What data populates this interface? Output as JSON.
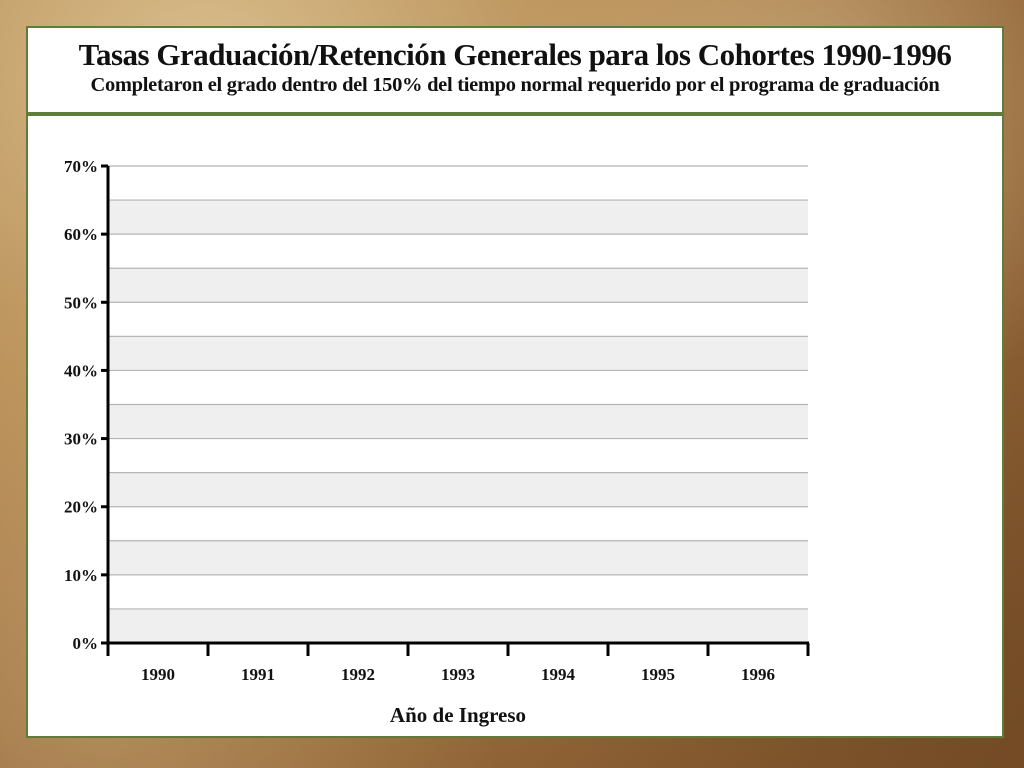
{
  "slide": {
    "title": "Tasas Graduación/Retención Generales para los Cohortes 1990-1996",
    "subtitle": "Completaron el grado dentro del 150% del tiempo normal requerido por el programa de graduación"
  },
  "chart_data": {
    "type": "bar",
    "title": "Tasas Graduación/Retención Generales para los Cohortes 1990-1996",
    "subtitle": "Completaron el grado dentro del 150% del tiempo normal requerido por el programa de graduación",
    "xlabel": "Año de Ingreso",
    "ylabel": "",
    "categories": [
      "1990",
      "1991",
      "1992",
      "1993",
      "1994",
      "1995",
      "1996"
    ],
    "series": [],
    "ylim": [
      0,
      70
    ],
    "y_ticks": [
      0,
      10,
      20,
      30,
      40,
      50,
      60,
      70
    ],
    "y_tick_labels": [
      "0%",
      "10%",
      "20%",
      "30%",
      "40%",
      "50%",
      "60%",
      "70%"
    ],
    "grid": true,
    "band_fill": "#efefef",
    "grid_color": "#b5b5b5",
    "accent_color": "#5e7c3c"
  }
}
